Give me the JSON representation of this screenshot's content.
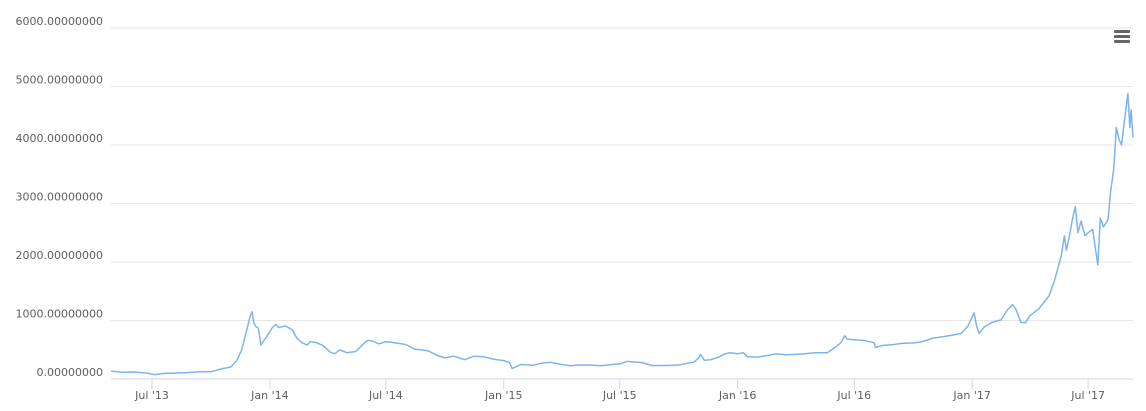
{
  "chart_data": {
    "type": "line",
    "title": "",
    "xlabel": "",
    "ylabel": "",
    "grid": "horizontal",
    "legend": "none",
    "series_color": "#7cb5ec",
    "ylim": [
      0,
      6000
    ],
    "y_ticks": [
      {
        "value": 0,
        "label": "0.00000000"
      },
      {
        "value": 1000,
        "label": "1000.00000000"
      },
      {
        "value": 2000,
        "label": "2000.00000000"
      },
      {
        "value": 3000,
        "label": "3000.00000000"
      },
      {
        "value": 4000,
        "label": "4000.00000000"
      },
      {
        "value": 5000,
        "label": "5000.00000000"
      },
      {
        "value": 6000,
        "label": "6000.00000000"
      }
    ],
    "xlim": [
      "2013-04-28",
      "2017-09-09"
    ],
    "x_ticks": [
      {
        "date": "2013-07-01",
        "label": "Jul '13"
      },
      {
        "date": "2014-01-01",
        "label": "Jan '14"
      },
      {
        "date": "2014-07-01",
        "label": "Jul '14"
      },
      {
        "date": "2015-01-01",
        "label": "Jan '15"
      },
      {
        "date": "2015-07-01",
        "label": "Jul '15"
      },
      {
        "date": "2016-01-01",
        "label": "Jan '16"
      },
      {
        "date": "2016-07-01",
        "label": "Jul '16"
      },
      {
        "date": "2017-01-01",
        "label": "Jan '17"
      },
      {
        "date": "2017-07-01",
        "label": "Jul '17"
      }
    ],
    "series": [
      {
        "points": [
          [
            "2013-04-28",
            135
          ],
          [
            "2013-05-15",
            115
          ],
          [
            "2013-06-01",
            120
          ],
          [
            "2013-06-20",
            105
          ],
          [
            "2013-07-05",
            75
          ],
          [
            "2013-07-20",
            95
          ],
          [
            "2013-08-05",
            100
          ],
          [
            "2013-08-25",
            110
          ],
          [
            "2013-09-15",
            125
          ],
          [
            "2013-10-01",
            125
          ],
          [
            "2013-10-20",
            180
          ],
          [
            "2013-11-01",
            205
          ],
          [
            "2013-11-10",
            310
          ],
          [
            "2013-11-18",
            500
          ],
          [
            "2013-11-25",
            800
          ],
          [
            "2013-12-01",
            1060
          ],
          [
            "2013-12-04",
            1150
          ],
          [
            "2013-12-07",
            950
          ],
          [
            "2013-12-10",
            900
          ],
          [
            "2013-12-14",
            870
          ],
          [
            "2013-12-18",
            580
          ],
          [
            "2013-12-22",
            650
          ],
          [
            "2013-12-28",
            740
          ],
          [
            "2014-01-05",
            880
          ],
          [
            "2014-01-10",
            930
          ],
          [
            "2014-01-15",
            880
          ],
          [
            "2014-01-25",
            910
          ],
          [
            "2014-02-05",
            840
          ],
          [
            "2014-02-12",
            700
          ],
          [
            "2014-02-20",
            620
          ],
          [
            "2014-02-28",
            580
          ],
          [
            "2014-03-05",
            640
          ],
          [
            "2014-03-15",
            620
          ],
          [
            "2014-03-25",
            570
          ],
          [
            "2014-04-05",
            460
          ],
          [
            "2014-04-12",
            430
          ],
          [
            "2014-04-20",
            500
          ],
          [
            "2014-05-01",
            450
          ],
          [
            "2014-05-15",
            470
          ],
          [
            "2014-05-25",
            580
          ],
          [
            "2014-06-02",
            660
          ],
          [
            "2014-06-10",
            650
          ],
          [
            "2014-06-20",
            600
          ],
          [
            "2014-07-01",
            640
          ],
          [
            "2014-07-15",
            620
          ],
          [
            "2014-08-01",
            590
          ],
          [
            "2014-08-15",
            510
          ],
          [
            "2014-08-25",
            500
          ],
          [
            "2014-09-05",
            480
          ],
          [
            "2014-09-20",
            400
          ],
          [
            "2014-10-01",
            360
          ],
          [
            "2014-10-15",
            390
          ],
          [
            "2014-11-01",
            330
          ],
          [
            "2014-11-15",
            390
          ],
          [
            "2014-12-01",
            380
          ],
          [
            "2014-12-15",
            340
          ],
          [
            "2015-01-01",
            315
          ],
          [
            "2015-01-10",
            280
          ],
          [
            "2015-01-14",
            180
          ],
          [
            "2015-01-20",
            210
          ],
          [
            "2015-01-28",
            250
          ],
          [
            "2015-02-15",
            235
          ],
          [
            "2015-03-01",
            270
          ],
          [
            "2015-03-15",
            285
          ],
          [
            "2015-04-01",
            250
          ],
          [
            "2015-04-15",
            225
          ],
          [
            "2015-05-01",
            240
          ],
          [
            "2015-05-15",
            240
          ],
          [
            "2015-06-01",
            225
          ],
          [
            "2015-06-15",
            245
          ],
          [
            "2015-07-01",
            258
          ],
          [
            "2015-07-12",
            300
          ],
          [
            "2015-07-25",
            290
          ],
          [
            "2015-08-05",
            280
          ],
          [
            "2015-08-20",
            230
          ],
          [
            "2015-09-01",
            230
          ],
          [
            "2015-09-15",
            230
          ],
          [
            "2015-10-01",
            240
          ],
          [
            "2015-10-15",
            270
          ],
          [
            "2015-10-25",
            290
          ],
          [
            "2015-11-01",
            360
          ],
          [
            "2015-11-04",
            420
          ],
          [
            "2015-11-10",
            320
          ],
          [
            "2015-11-20",
            330
          ],
          [
            "2015-12-01",
            370
          ],
          [
            "2015-12-10",
            420
          ],
          [
            "2015-12-20",
            450
          ],
          [
            "2016-01-01",
            430
          ],
          [
            "2016-01-10",
            450
          ],
          [
            "2016-01-16",
            380
          ],
          [
            "2016-02-01",
            375
          ],
          [
            "2016-02-15",
            400
          ],
          [
            "2016-03-01",
            430
          ],
          [
            "2016-03-15",
            415
          ],
          [
            "2016-04-01",
            420
          ],
          [
            "2016-04-15",
            430
          ],
          [
            "2016-05-01",
            450
          ],
          [
            "2016-05-20",
            450
          ],
          [
            "2016-06-01",
            540
          ],
          [
            "2016-06-10",
            620
          ],
          [
            "2016-06-16",
            740
          ],
          [
            "2016-06-20",
            680
          ],
          [
            "2016-07-01",
            670
          ],
          [
            "2016-07-15",
            660
          ],
          [
            "2016-08-01",
            620
          ],
          [
            "2016-08-03",
            540
          ],
          [
            "2016-08-15",
            575
          ],
          [
            "2016-09-01",
            590
          ],
          [
            "2016-09-15",
            610
          ],
          [
            "2016-10-01",
            615
          ],
          [
            "2016-10-15",
            640
          ],
          [
            "2016-11-01",
            700
          ],
          [
            "2016-11-15",
            720
          ],
          [
            "2016-12-01",
            750
          ],
          [
            "2016-12-15",
            780
          ],
          [
            "2016-12-25",
            900
          ],
          [
            "2017-01-04",
            1130
          ],
          [
            "2017-01-08",
            900
          ],
          [
            "2017-01-12",
            780
          ],
          [
            "2017-01-20",
            890
          ],
          [
            "2017-02-01",
            970
          ],
          [
            "2017-02-15",
            1010
          ],
          [
            "2017-02-25",
            1180
          ],
          [
            "2017-03-05",
            1270
          ],
          [
            "2017-03-10",
            1200
          ],
          [
            "2017-03-18",
            970
          ],
          [
            "2017-03-25",
            960
          ],
          [
            "2017-04-01",
            1080
          ],
          [
            "2017-04-15",
            1200
          ],
          [
            "2017-05-01",
            1420
          ],
          [
            "2017-05-10",
            1700
          ],
          [
            "2017-05-20",
            2100
          ],
          [
            "2017-05-25",
            2450
          ],
          [
            "2017-05-28",
            2200
          ],
          [
            "2017-06-01",
            2400
          ],
          [
            "2017-06-06",
            2700
          ],
          [
            "2017-06-11",
            2950
          ],
          [
            "2017-06-15",
            2500
          ],
          [
            "2017-06-20",
            2700
          ],
          [
            "2017-06-26",
            2450
          ],
          [
            "2017-07-01",
            2500
          ],
          [
            "2017-07-08",
            2560
          ],
          [
            "2017-07-16",
            1950
          ],
          [
            "2017-07-20",
            2750
          ],
          [
            "2017-07-25",
            2600
          ],
          [
            "2017-08-01",
            2720
          ],
          [
            "2017-08-05",
            3200
          ],
          [
            "2017-08-10",
            3600
          ],
          [
            "2017-08-14",
            4300
          ],
          [
            "2017-08-18",
            4100
          ],
          [
            "2017-08-22",
            4000
          ],
          [
            "2017-08-26",
            4350
          ],
          [
            "2017-09-01",
            4880
          ],
          [
            "2017-09-04",
            4300
          ],
          [
            "2017-09-06",
            4600
          ],
          [
            "2017-09-09",
            4130
          ]
        ]
      }
    ]
  },
  "ui": {
    "menu_icon": "hamburger-menu-icon"
  }
}
